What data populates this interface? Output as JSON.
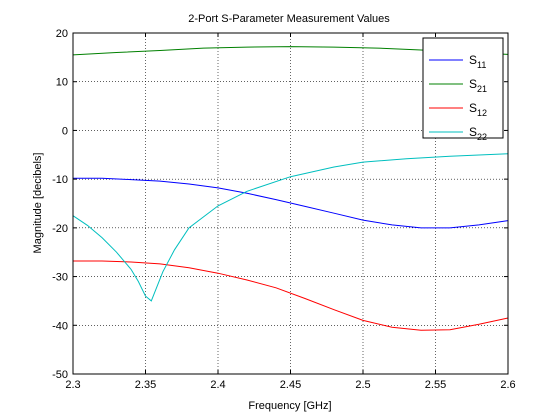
{
  "chart_data": {
    "type": "line",
    "title": "2-Port S-Parameter Measurement Values",
    "xlabel": "Frequency [GHz]",
    "ylabel": "Magnitude [decibels]",
    "xlim": [
      2.3,
      2.6
    ],
    "ylim": [
      -50,
      20
    ],
    "xticks": [
      2.3,
      2.35,
      2.4,
      2.45,
      2.5,
      2.55,
      2.6
    ],
    "xtick_labels": [
      "2.3",
      "2.35",
      "2.4",
      "2.45",
      "2.5",
      "2.55",
      "2.6"
    ],
    "yticks": [
      -50,
      -40,
      -30,
      -20,
      -10,
      0,
      10,
      20
    ],
    "ytick_labels": [
      "-50",
      "-40",
      "-30",
      "-20",
      "-10",
      "0",
      "10",
      "20"
    ],
    "grid": true,
    "legend_position": "top-right",
    "series": [
      {
        "name": "S",
        "sub": "11",
        "color": "#0000ff",
        "x": [
          2.3,
          2.32,
          2.34,
          2.36,
          2.38,
          2.4,
          2.42,
          2.44,
          2.46,
          2.48,
          2.5,
          2.52,
          2.54,
          2.56,
          2.58,
          2.6
        ],
        "y": [
          -9.8,
          -9.8,
          -10.1,
          -10.4,
          -11.0,
          -11.8,
          -12.9,
          -14.2,
          -15.6,
          -17.0,
          -18.4,
          -19.4,
          -20.0,
          -20.0,
          -19.4,
          -18.5
        ]
      },
      {
        "name": "S",
        "sub": "21",
        "color": "#008000",
        "x": [
          2.3,
          2.33,
          2.36,
          2.39,
          2.42,
          2.45,
          2.48,
          2.51,
          2.54,
          2.57,
          2.6
        ],
        "y": [
          15.5,
          16.0,
          16.4,
          16.9,
          17.1,
          17.2,
          17.1,
          16.9,
          16.5,
          16.0,
          15.6
        ]
      },
      {
        "name": "S",
        "sub": "12",
        "color": "#ff0000",
        "x": [
          2.3,
          2.32,
          2.34,
          2.36,
          2.38,
          2.4,
          2.42,
          2.44,
          2.46,
          2.48,
          2.5,
          2.52,
          2.54,
          2.56,
          2.58,
          2.6
        ],
        "y": [
          -26.8,
          -26.8,
          -27.0,
          -27.4,
          -28.2,
          -29.3,
          -30.7,
          -32.3,
          -34.5,
          -36.8,
          -39.0,
          -40.4,
          -41.0,
          -40.9,
          -39.8,
          -38.5
        ]
      },
      {
        "name": "S",
        "sub": "22",
        "color": "#00bfbf",
        "x": [
          2.3,
          2.31,
          2.32,
          2.33,
          2.34,
          2.345,
          2.35,
          2.354,
          2.358,
          2.362,
          2.37,
          2.38,
          2.4,
          2.42,
          2.45,
          2.48,
          2.5,
          2.53,
          2.56,
          2.6
        ],
        "y": [
          -17.5,
          -19.5,
          -22.0,
          -25.0,
          -28.5,
          -31.0,
          -34.0,
          -35.0,
          -32.0,
          -29.0,
          -24.5,
          -20.0,
          -15.5,
          -12.5,
          -9.5,
          -7.5,
          -6.5,
          -5.8,
          -5.3,
          -4.8
        ]
      }
    ]
  }
}
